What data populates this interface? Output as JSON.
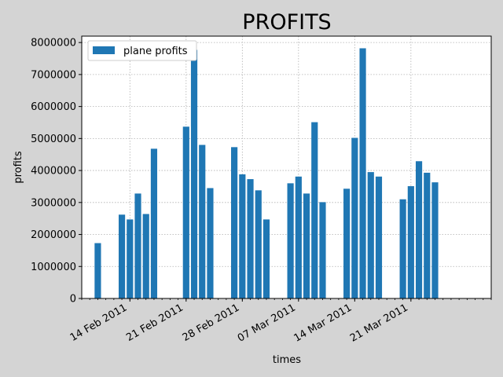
{
  "chart_data": {
    "type": "bar",
    "title": "PROFITS",
    "xlabel": "times",
    "ylabel": "profits",
    "ylim": [
      0,
      8200000
    ],
    "yticks": [
      0,
      1000000,
      2000000,
      3000000,
      4000000,
      5000000,
      6000000,
      7000000,
      8000000
    ],
    "ytick_labels": [
      "0",
      "1000000",
      "2000000",
      "3000000",
      "4000000",
      "5000000",
      "6000000",
      "7000000",
      "8000000"
    ],
    "xlim": [
      "2011-02-08",
      "2011-03-31"
    ],
    "xticks": [
      "2011-02-14",
      "2011-02-21",
      "2011-02-28",
      "2011-03-07",
      "2011-03-14",
      "2011-03-21"
    ],
    "xtick_labels": [
      "14 Feb 2011",
      "21 Feb 2011",
      "28 Feb 2011",
      "07 Mar 2011",
      "14 Mar 2011",
      "21 Mar 2011"
    ],
    "grid": true,
    "legend_position": "top-left",
    "colors": {
      "bar": "#1f77b4",
      "background": "#d4d4d4",
      "plot": "#ffffff",
      "grid": "#b0b0b0"
    },
    "series": [
      {
        "name": "plane profits",
        "x": [
          "2011-02-10",
          "2011-02-13",
          "2011-02-14",
          "2011-02-15",
          "2011-02-16",
          "2011-02-17",
          "2011-02-21",
          "2011-02-22",
          "2011-02-23",
          "2011-02-24",
          "2011-02-27",
          "2011-02-28",
          "2011-03-01",
          "2011-03-02",
          "2011-03-03",
          "2011-03-06",
          "2011-03-07",
          "2011-03-08",
          "2011-03-09",
          "2011-03-10",
          "2011-03-13",
          "2011-03-14",
          "2011-03-15",
          "2011-03-16",
          "2011-03-17",
          "2011-03-20",
          "2011-03-21",
          "2011-03-22",
          "2011-03-23",
          "2011-03-24"
        ],
        "values": [
          1730000,
          2620000,
          2470000,
          3280000,
          2640000,
          4680000,
          5370000,
          7770000,
          4800000,
          3450000,
          4730000,
          3880000,
          3730000,
          3380000,
          2470000,
          3600000,
          3810000,
          3280000,
          5510000,
          3010000,
          3430000,
          5020000,
          7820000,
          3950000,
          3810000,
          3100000,
          3510000,
          4290000,
          3930000,
          3630000
        ]
      }
    ]
  }
}
